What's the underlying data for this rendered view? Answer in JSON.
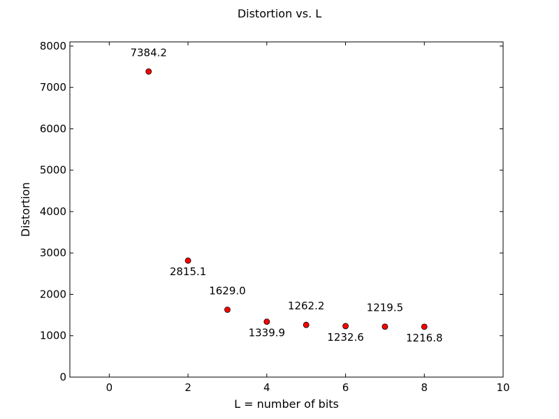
{
  "chart_data": {
    "type": "scatter",
    "title": "Distortion vs. L",
    "xlabel": "L = number of bits",
    "ylabel": "Distortion",
    "xlim": [
      -1,
      10
    ],
    "ylim": [
      0,
      8100
    ],
    "xticks": [
      0,
      2,
      4,
      6,
      8,
      10
    ],
    "yticks": [
      0,
      1000,
      2000,
      3000,
      4000,
      5000,
      6000,
      7000,
      8000
    ],
    "grid": false,
    "marker_color": "#ff0000",
    "points": [
      {
        "x": 1,
        "y": 7384.2,
        "label": "7384.2",
        "label_pos": "above"
      },
      {
        "x": 2,
        "y": 2815.1,
        "label": "2815.1",
        "label_pos": "below"
      },
      {
        "x": 3,
        "y": 1629.0,
        "label": "1629.0",
        "label_pos": "above"
      },
      {
        "x": 4,
        "y": 1339.9,
        "label": "1339.9",
        "label_pos": "below"
      },
      {
        "x": 5,
        "y": 1262.2,
        "label": "1262.2",
        "label_pos": "above"
      },
      {
        "x": 6,
        "y": 1232.6,
        "label": "1232.6",
        "label_pos": "below"
      },
      {
        "x": 7,
        "y": 1219.5,
        "label": "1219.5",
        "label_pos": "above"
      },
      {
        "x": 8,
        "y": 1216.8,
        "label": "1216.8",
        "label_pos": "below"
      }
    ]
  }
}
